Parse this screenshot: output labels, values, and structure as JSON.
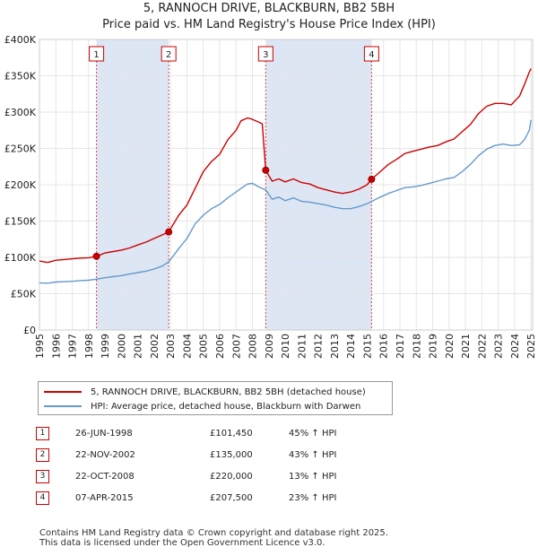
{
  "title_line1": "5, RANNOCH DRIVE, BLACKBURN, BB2 5BH",
  "title_line2": "Price paid vs. HM Land Registry's House Price Index (HPI)",
  "colors": {
    "property": "#cc0000",
    "hpi": "#6699cc",
    "shade": "#dce6f5",
    "grid": "#e6e6e6"
  },
  "chart_data": {
    "type": "line",
    "title": "Price paid vs. HM Land Registry's House Price Index (HPI)",
    "xlim": [
      1995.0,
      2025.1
    ],
    "ylim": [
      0,
      400000
    ],
    "x_ticks": [
      1995,
      1996,
      1997,
      1998,
      1999,
      2000,
      2001,
      2002,
      2003,
      2004,
      2005,
      2006,
      2007,
      2008,
      2009,
      2010,
      2011,
      2012,
      2013,
      2014,
      2015,
      2016,
      2017,
      2018,
      2019,
      2020,
      2021,
      2022,
      2023,
      2024,
      2025
    ],
    "y_ticks": [
      0,
      50000,
      100000,
      150000,
      200000,
      250000,
      300000,
      350000,
      400000
    ],
    "y_tick_labels": [
      "£0",
      "£50K",
      "£100K",
      "£150K",
      "£200K",
      "£250K",
      "£300K",
      "£350K",
      "£400K"
    ],
    "shaded_periods": [
      [
        1998.48,
        2002.89
      ],
      [
        2008.81,
        2015.27
      ]
    ],
    "series": [
      {
        "name": "5, RANNOCH DRIVE, BLACKBURN, BB2 5BH (detached house)",
        "color": "#cc0000",
        "x": [
          1995.0,
          1995.5,
          1996.0,
          1996.5,
          1997.0,
          1997.5,
          1998.0,
          1998.48,
          1999.0,
          1999.5,
          2000.0,
          2000.5,
          2001.0,
          2001.5,
          2002.0,
          2002.5,
          2002.89,
          2003.5,
          2004.0,
          2004.5,
          2005.0,
          2005.5,
          2006.0,
          2006.5,
          2007.0,
          2007.3,
          2007.7,
          2008.0,
          2008.3,
          2008.6,
          2008.81,
          2009.2,
          2009.6,
          2010.0,
          2010.5,
          2011.0,
          2011.5,
          2012.0,
          2012.5,
          2013.0,
          2013.5,
          2014.0,
          2014.5,
          2015.0,
          2015.27,
          2015.8,
          2016.3,
          2016.8,
          2017.3,
          2017.8,
          2018.3,
          2018.8,
          2019.3,
          2019.8,
          2020.3,
          2020.8,
          2021.3,
          2021.8,
          2022.3,
          2022.8,
          2023.3,
          2023.8,
          2024.3,
          2024.6,
          2024.9,
          2025.0
        ],
        "values": [
          95000,
          93000,
          96000,
          97000,
          98000,
          99000,
          99500,
          101450,
          106000,
          108000,
          110000,
          113000,
          117000,
          121000,
          126000,
          131000,
          135000,
          158000,
          172000,
          195000,
          218000,
          232000,
          242000,
          262000,
          275000,
          288000,
          292000,
          290000,
          287000,
          284000,
          220000,
          205000,
          208000,
          204000,
          208000,
          203000,
          201000,
          196000,
          193000,
          190000,
          188000,
          190000,
          194000,
          200000,
          207500,
          218000,
          228000,
          235000,
          243000,
          246000,
          249000,
          252000,
          254000,
          259000,
          263000,
          273000,
          283000,
          298000,
          308000,
          312000,
          312000,
          310000,
          322000,
          338000,
          355000,
          360000
        ]
      },
      {
        "name": "HPI: Average price, detached house, Blackburn with Darwen",
        "color": "#6699cc",
        "x": [
          1995.0,
          1995.5,
          1996.0,
          1996.5,
          1997.0,
          1997.5,
          1998.0,
          1998.48,
          1999.0,
          1999.5,
          2000.0,
          2000.5,
          2001.0,
          2001.5,
          2002.0,
          2002.5,
          2002.89,
          2003.5,
          2004.0,
          2004.5,
          2005.0,
          2005.5,
          2006.0,
          2006.5,
          2007.0,
          2007.3,
          2007.7,
          2008.0,
          2008.3,
          2008.6,
          2008.81,
          2009.2,
          2009.6,
          2010.0,
          2010.5,
          2011.0,
          2011.5,
          2012.0,
          2012.5,
          2013.0,
          2013.5,
          2014.0,
          2014.5,
          2015.0,
          2015.27,
          2015.8,
          2016.3,
          2016.8,
          2017.3,
          2017.8,
          2018.3,
          2018.8,
          2019.3,
          2019.8,
          2020.3,
          2020.8,
          2021.3,
          2021.8,
          2022.3,
          2022.8,
          2023.3,
          2023.8,
          2024.3,
          2024.6,
          2024.9,
          2025.0
        ],
        "values": [
          65000,
          64500,
          66000,
          66500,
          67000,
          68000,
          68500,
          70000,
          72000,
          73500,
          75000,
          77000,
          79000,
          81000,
          84000,
          88000,
          94000,
          112000,
          126000,
          146000,
          158000,
          167000,
          173000,
          182000,
          190000,
          195000,
          201000,
          202000,
          198000,
          195000,
          193000,
          180000,
          183000,
          178000,
          182000,
          177000,
          176000,
          174000,
          172000,
          169000,
          167000,
          167000,
          170000,
          174000,
          177000,
          183000,
          188000,
          192000,
          196000,
          197000,
          199000,
          202000,
          205000,
          208000,
          210000,
          218000,
          228000,
          240000,
          249000,
          254000,
          256000,
          254000,
          255000,
          262000,
          275000,
          289000
        ]
      }
    ],
    "sales": [
      {
        "n": "1",
        "x": 1998.48,
        "price": 101450
      },
      {
        "n": "2",
        "x": 2002.89,
        "price": 135000
      },
      {
        "n": "3",
        "x": 2008.81,
        "price": 220000
      },
      {
        "n": "4",
        "x": 2015.27,
        "price": 207500
      }
    ]
  },
  "legend": {
    "property_label": "5, RANNOCH DRIVE, BLACKBURN, BB2 5BH (detached house)",
    "hpi_label": "HPI: Average price, detached house, Blackburn with Darwen"
  },
  "transactions": [
    {
      "n": "1",
      "date": "26-JUN-1998",
      "price": "£101,450",
      "hpi": "45% ↑ HPI"
    },
    {
      "n": "2",
      "date": "22-NOV-2002",
      "price": "£135,000",
      "hpi": "43% ↑ HPI"
    },
    {
      "n": "3",
      "date": "22-OCT-2008",
      "price": "£220,000",
      "hpi": "13% ↑ HPI"
    },
    {
      "n": "4",
      "date": "07-APR-2015",
      "price": "£207,500",
      "hpi": "23% ↑ HPI"
    }
  ],
  "footer_line1": "Contains HM Land Registry data © Crown copyright and database right 2025.",
  "footer_line2": "This data is licensed under the Open Government Licence v3.0."
}
